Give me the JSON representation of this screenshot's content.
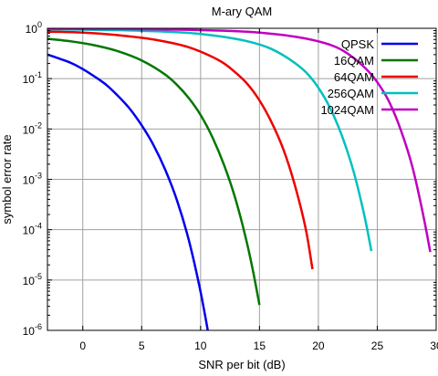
{
  "chart_data": {
    "type": "line",
    "title": "M-ary QAM",
    "xlabel": "SNR per bit (dB)",
    "ylabel": "symbol error rate",
    "xlim": [
      -3,
      30
    ],
    "ylim": [
      1e-06,
      1
    ],
    "yscale": "log",
    "grid": true,
    "legend_position": "top-right",
    "x_ticks": [
      0,
      5,
      10,
      15,
      20,
      25,
      30
    ],
    "y_ticks": [
      {
        "value": 1,
        "base": "10",
        "exp": "0"
      },
      {
        "value": 0.1,
        "base": "10",
        "exp": "-1"
      },
      {
        "value": 0.01,
        "base": "10",
        "exp": "-2"
      },
      {
        "value": 0.001,
        "base": "10",
        "exp": "-3"
      },
      {
        "value": 0.0001,
        "base": "10",
        "exp": "-4"
      },
      {
        "value": 1e-05,
        "base": "10",
        "exp": "-5"
      },
      {
        "value": 1e-06,
        "base": "10",
        "exp": "-6"
      }
    ],
    "series": [
      {
        "name": "QPSK",
        "color": "#0000ee",
        "x": [
          -3,
          -2,
          -1,
          0,
          1,
          2,
          3,
          4,
          5,
          6,
          7,
          8,
          9,
          10,
          10.5,
          11
        ],
        "y": [
          0.3,
          0.25,
          0.205,
          0.155,
          0.11,
          0.075,
          0.045,
          0.025,
          0.0118,
          0.0048,
          0.00155,
          0.00038,
          6.2e-05,
          5.8e-06,
          1.4e-06,
          3e-07
        ]
      },
      {
        "name": "16QAM",
        "color": "#007700",
        "x": [
          -3,
          -1,
          1,
          3,
          5,
          7,
          8,
          9,
          10,
          11,
          12,
          13,
          14,
          14.5,
          15
        ],
        "y": [
          0.62,
          0.55,
          0.46,
          0.35,
          0.23,
          0.12,
          0.075,
          0.041,
          0.019,
          0.0069,
          0.0019,
          0.00038,
          4.7e-05,
          1.32e-05,
          3.2e-06
        ]
      },
      {
        "name": "64QAM",
        "color": "#ee0000",
        "x": [
          -3,
          0,
          3,
          6,
          9,
          11,
          12,
          13,
          14,
          15,
          16,
          17,
          18,
          19,
          19.5
        ],
        "y": [
          0.86,
          0.82,
          0.73,
          0.6,
          0.42,
          0.27,
          0.2,
          0.13,
          0.077,
          0.037,
          0.014,
          0.0041,
          0.00077,
          8.5e-05,
          1.64e-05
        ]
      },
      {
        "name": "256QAM",
        "color": "#00c0c0",
        "x": [
          -3,
          0,
          5,
          10,
          14,
          16,
          18,
          19,
          20,
          21,
          22,
          23,
          24,
          24.5
        ],
        "y": [
          0.95,
          0.94,
          0.89,
          0.77,
          0.55,
          0.39,
          0.205,
          0.13,
          0.066,
          0.026,
          0.0073,
          0.0014,
          0.00015,
          3.75e-05
        ]
      },
      {
        "name": "1024QAM",
        "color": "#c000c0",
        "x": [
          -3,
          0,
          5,
          10,
          15,
          20,
          22,
          24,
          25,
          26,
          27,
          28,
          29,
          29.5
        ],
        "y": [
          0.98,
          0.975,
          0.96,
          0.92,
          0.82,
          0.55,
          0.37,
          0.16,
          0.085,
          0.035,
          0.0095,
          0.0017,
          0.00015,
          3.6e-05
        ]
      }
    ]
  }
}
